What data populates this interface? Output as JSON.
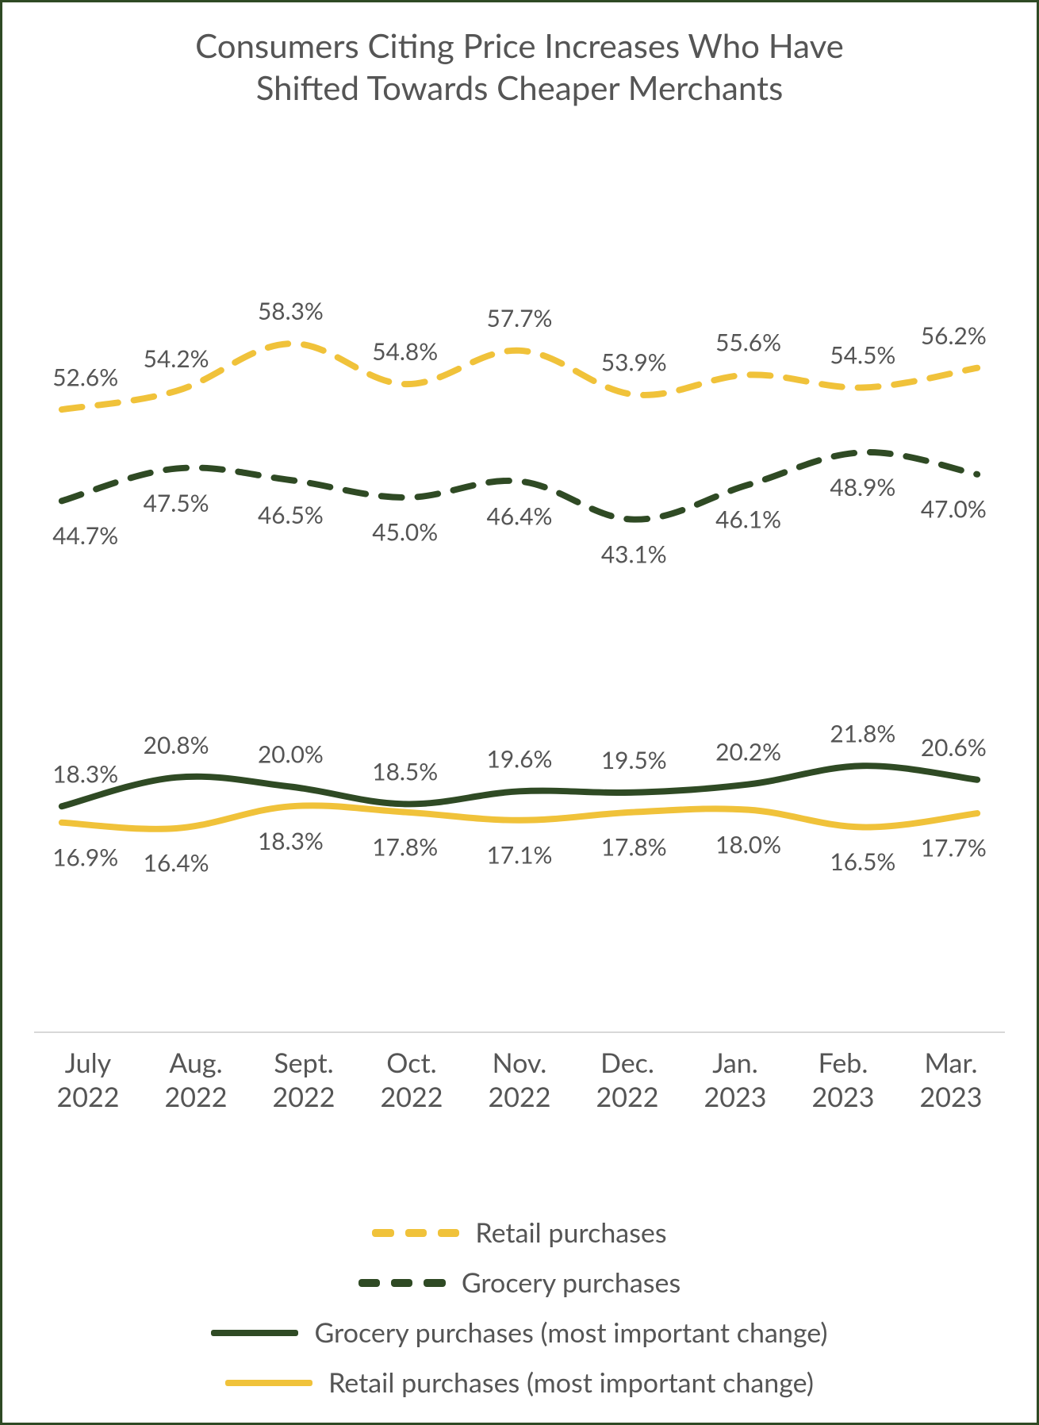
{
  "chart": {
    "type": "line",
    "title_line1": "Consumers Citing Price Increases Who Have",
    "title_line2": "Shifted Towards Cheaper Merchants",
    "title_fontsize": 42,
    "title_color": "#555555",
    "background_color": "#ffffff",
    "border_color": "#2f4a24",
    "ylim": [
      0,
      70
    ],
    "categories": [
      {
        "l1": "July",
        "l2": "2022"
      },
      {
        "l1": "Aug.",
        "l2": "2022"
      },
      {
        "l1": "Sept.",
        "l2": "2022"
      },
      {
        "l1": "Oct.",
        "l2": "2022"
      },
      {
        "l1": "Nov.",
        "l2": "2022"
      },
      {
        "l1": "Dec.",
        "l2": "2022"
      },
      {
        "l1": "Jan.",
        "l2": "2023"
      },
      {
        "l1": "Feb.",
        "l2": "2023"
      },
      {
        "l1": "Mar.",
        "l2": "2023"
      }
    ],
    "label_fontsize": 34,
    "label_color": "#555555",
    "datalabel_fontsize": 30,
    "datalabel_color": "#555555",
    "axis_line_color": "#cccccc",
    "line_width": 8,
    "dash_pattern": "26 20",
    "series": [
      {
        "key": "retail",
        "name": "Retail purchases",
        "color": "#f0c23a",
        "style": "dashed",
        "label_pos": "above",
        "values": [
          52.6,
          54.2,
          58.3,
          54.8,
          57.7,
          53.9,
          55.6,
          54.5,
          56.2
        ]
      },
      {
        "key": "grocery",
        "name": "Grocery purchases",
        "color": "#2f4a24",
        "style": "dashed",
        "label_pos": "below",
        "values": [
          44.7,
          47.5,
          46.5,
          45.0,
          46.4,
          43.1,
          46.1,
          48.9,
          47.0
        ]
      },
      {
        "key": "grocery_most",
        "name": "Grocery purchases (most important change)",
        "color": "#2f4a24",
        "style": "solid",
        "label_pos": "above",
        "values": [
          18.3,
          20.8,
          20.0,
          18.5,
          19.6,
          19.5,
          20.2,
          21.8,
          20.6
        ]
      },
      {
        "key": "retail_most",
        "name": "Retail purchases (most important change)",
        "color": "#f0c23a",
        "style": "solid",
        "label_pos": "below",
        "values": [
          16.9,
          16.4,
          18.3,
          17.8,
          17.1,
          17.8,
          18.0,
          16.5,
          17.7
        ]
      }
    ],
    "legend_order": [
      "retail",
      "grocery",
      "grocery_most",
      "retail_most"
    ]
  }
}
